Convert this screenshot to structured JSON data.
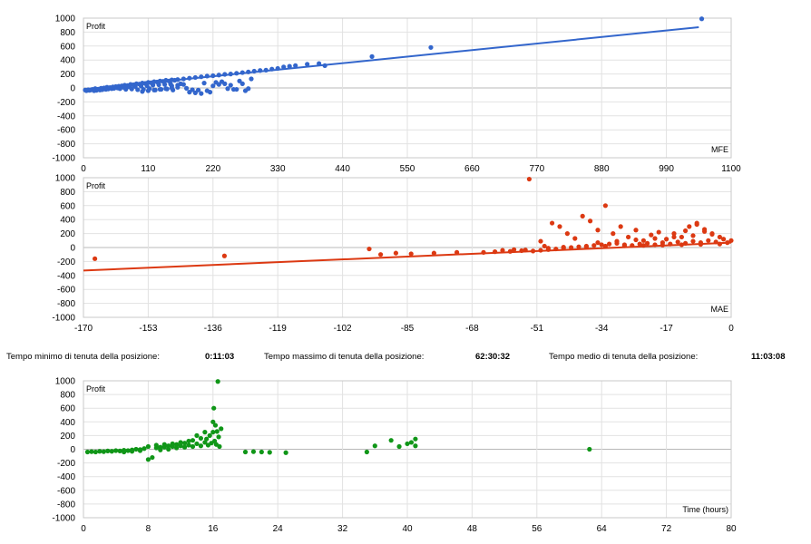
{
  "stats": {
    "min_label": "Tempo minimo di tenuta della posizione:",
    "min_value": "0:11:03",
    "max_label": "Tempo massimo di tenuta della posizione:",
    "max_value": "62:30:32",
    "avg_label": "Tempo medio di tenuta della posizione:",
    "avg_value": "11:03:08"
  },
  "chart_data": [
    {
      "type": "scatter",
      "color": "#3366cc",
      "ylabel": "Profit",
      "xlabel": "MFE",
      "xlim": [
        0,
        1100
      ],
      "ylim": [
        -1000,
        1000
      ],
      "xticks": [
        0,
        110,
        220,
        330,
        440,
        550,
        660,
        770,
        880,
        990,
        1100
      ],
      "yticks": [
        1000,
        800,
        600,
        400,
        200,
        0,
        -200,
        -400,
        -600,
        -800,
        -1000
      ],
      "trendline": [
        [
          0,
          -20
        ],
        [
          1045,
          870
        ]
      ],
      "points": [
        [
          3,
          -30
        ],
        [
          5,
          -40
        ],
        [
          8,
          -25
        ],
        [
          10,
          -35
        ],
        [
          12,
          -30
        ],
        [
          15,
          -20
        ],
        [
          18,
          -40
        ],
        [
          20,
          -10
        ],
        [
          22,
          -35
        ],
        [
          25,
          -20
        ],
        [
          28,
          -30
        ],
        [
          30,
          -5
        ],
        [
          32,
          -25
        ],
        [
          35,
          0
        ],
        [
          38,
          -20
        ],
        [
          40,
          10
        ],
        [
          42,
          -15
        ],
        [
          45,
          5
        ],
        [
          48,
          -10
        ],
        [
          50,
          15
        ],
        [
          52,
          -5
        ],
        [
          55,
          20
        ],
        [
          58,
          0
        ],
        [
          60,
          25
        ],
        [
          62,
          -10
        ],
        [
          65,
          30
        ],
        [
          68,
          10
        ],
        [
          70,
          40
        ],
        [
          72,
          -20
        ],
        [
          75,
          35
        ],
        [
          78,
          15
        ],
        [
          80,
          50
        ],
        [
          82,
          -15
        ],
        [
          85,
          45
        ],
        [
          88,
          20
        ],
        [
          90,
          60
        ],
        [
          92,
          -25
        ],
        [
          95,
          55
        ],
        [
          98,
          25
        ],
        [
          100,
          70
        ],
        [
          102,
          -20
        ],
        [
          105,
          65
        ],
        [
          108,
          30
        ],
        [
          110,
          80
        ],
        [
          112,
          -10
        ],
        [
          115,
          75
        ],
        [
          118,
          40
        ],
        [
          120,
          90
        ],
        [
          122,
          -30
        ],
        [
          125,
          85
        ],
        [
          128,
          45
        ],
        [
          130,
          100
        ],
        [
          132,
          -20
        ],
        [
          135,
          95
        ],
        [
          138,
          50
        ],
        [
          140,
          110
        ],
        [
          142,
          -15
        ],
        [
          145,
          100
        ],
        [
          148,
          55
        ],
        [
          150,
          115
        ],
        [
          152,
          -30
        ],
        [
          155,
          110
        ],
        [
          160,
          120
        ],
        [
          165,
          60
        ],
        [
          170,
          130
        ],
        [
          175,
          -5
        ],
        [
          180,
          140
        ],
        [
          185,
          -25
        ],
        [
          190,
          150
        ],
        [
          195,
          -30
        ],
        [
          200,
          160
        ],
        [
          205,
          70
        ],
        [
          210,
          170
        ],
        [
          215,
          -60
        ],
        [
          220,
          175
        ],
        [
          225,
          80
        ],
        [
          230,
          185
        ],
        [
          235,
          90
        ],
        [
          240,
          195
        ],
        [
          245,
          -10
        ],
        [
          250,
          200
        ],
        [
          255,
          -20
        ],
        [
          260,
          210
        ],
        [
          265,
          100
        ],
        [
          270,
          220
        ],
        [
          275,
          -40
        ],
        [
          280,
          230
        ],
        [
          285,
          130
        ],
        [
          290,
          240
        ],
        [
          300,
          250
        ],
        [
          310,
          255
        ],
        [
          320,
          270
        ],
        [
          330,
          280
        ],
        [
          340,
          300
        ],
        [
          350,
          310
        ],
        [
          360,
          320
        ],
        [
          380,
          340
        ],
        [
          400,
          350
        ],
        [
          410,
          320
        ],
        [
          490,
          450
        ],
        [
          590,
          580
        ],
        [
          1050,
          990
        ],
        [
          150,
          30
        ],
        [
          160,
          40
        ],
        [
          170,
          50
        ],
        [
          180,
          -60
        ],
        [
          190,
          -70
        ],
        [
          200,
          -80
        ],
        [
          210,
          -40
        ],
        [
          220,
          30
        ],
        [
          230,
          50
        ],
        [
          240,
          60
        ],
        [
          250,
          40
        ],
        [
          260,
          -20
        ],
        [
          270,
          60
        ],
        [
          280,
          -10
        ],
        [
          100,
          -50
        ],
        [
          110,
          -40
        ],
        [
          120,
          -30
        ],
        [
          130,
          -20
        ],
        [
          140,
          -10
        ],
        [
          150,
          0
        ],
        [
          160,
          10
        ]
      ]
    },
    {
      "type": "scatter",
      "color": "#dc3912",
      "ylabel": "Profit",
      "xlabel": "MAE",
      "xlim": [
        -170,
        0
      ],
      "ylim": [
        -1000,
        1000
      ],
      "xticks": [
        -170,
        -153,
        -136,
        -119,
        -102,
        -85,
        -68,
        -51,
        -34,
        -17,
        0
      ],
      "yticks": [
        1000,
        800,
        600,
        400,
        200,
        0,
        -200,
        -400,
        -600,
        -800,
        -1000
      ],
      "trendline": [
        [
          -170,
          -330
        ],
        [
          0,
          70
        ]
      ],
      "points": [
        [
          -167,
          -160
        ],
        [
          -133,
          -120
        ],
        [
          -95,
          -20
        ],
        [
          -92,
          -100
        ],
        [
          -88,
          -80
        ],
        [
          -84,
          -90
        ],
        [
          -78,
          -80
        ],
        [
          -72,
          -70
        ],
        [
          -65,
          -70
        ],
        [
          -62,
          -60
        ],
        [
          -58,
          -55
        ],
        [
          -55,
          -45
        ],
        [
          -53,
          980
        ],
        [
          -52,
          -50
        ],
        [
          -50,
          -40
        ],
        [
          -50,
          90
        ],
        [
          -49,
          20
        ],
        [
          -48,
          -30
        ],
        [
          -47,
          350
        ],
        [
          -46,
          -20
        ],
        [
          -45,
          300
        ],
        [
          -44,
          -10
        ],
        [
          -43,
          200
        ],
        [
          -42,
          0
        ],
        [
          -41,
          130
        ],
        [
          -40,
          10
        ],
        [
          -39,
          450
        ],
        [
          -38,
          20
        ],
        [
          -37,
          380
        ],
        [
          -36,
          30
        ],
        [
          -35,
          250
        ],
        [
          -34,
          40
        ],
        [
          -33,
          600
        ],
        [
          -32,
          50
        ],
        [
          -31,
          200
        ],
        [
          -30,
          60
        ],
        [
          -29,
          300
        ],
        [
          -28,
          40
        ],
        [
          -27,
          150
        ],
        [
          -26,
          30
        ],
        [
          -25,
          250
        ],
        [
          -24,
          50
        ],
        [
          -23,
          100
        ],
        [
          -22,
          60
        ],
        [
          -21,
          180
        ],
        [
          -20,
          40
        ],
        [
          -19,
          220
        ],
        [
          -18,
          70
        ],
        [
          -17,
          120
        ],
        [
          -16,
          50
        ],
        [
          -15,
          200
        ],
        [
          -14,
          80
        ],
        [
          -13,
          150
        ],
        [
          -12,
          60
        ],
        [
          -11,
          300
        ],
        [
          -10,
          90
        ],
        [
          -9,
          350
        ],
        [
          -8,
          70
        ],
        [
          -7,
          230
        ],
        [
          -6,
          100
        ],
        [
          -5,
          200
        ],
        [
          -4,
          80
        ],
        [
          -3,
          150
        ],
        [
          -2,
          120
        ],
        [
          -1,
          70
        ],
        [
          0,
          100
        ],
        [
          -60,
          -40
        ],
        [
          -57,
          -30
        ],
        [
          -54,
          -35
        ],
        [
          -48,
          -10
        ],
        [
          -44,
          5
        ],
        [
          -38,
          10
        ],
        [
          -33,
          20
        ],
        [
          -28,
          25
        ],
        [
          -23,
          30
        ],
        [
          -18,
          35
        ],
        [
          -13,
          40
        ],
        [
          -8,
          45
        ],
        [
          -3,
          50
        ],
        [
          -35,
          70
        ],
        [
          -30,
          90
        ],
        [
          -25,
          110
        ],
        [
          -20,
          130
        ],
        [
          -15,
          150
        ],
        [
          -10,
          170
        ],
        [
          -5,
          190
        ],
        [
          -7,
          260
        ],
        [
          -12,
          240
        ],
        [
          -9,
          330
        ]
      ]
    },
    {
      "type": "scatter",
      "color": "#109618",
      "ylabel": "Profit",
      "xlabel": "Time (hours)",
      "xlim": [
        0,
        80
      ],
      "ylim": [
        -1000,
        1000
      ],
      "xticks": [
        0,
        8,
        16,
        24,
        32,
        40,
        48,
        56,
        64,
        72,
        80
      ],
      "yticks": [
        1000,
        800,
        600,
        400,
        200,
        0,
        -200,
        -400,
        -600,
        -800,
        -1000
      ],
      "points": [
        [
          0.5,
          -40
        ],
        [
          1,
          -35
        ],
        [
          1.5,
          -40
        ],
        [
          2,
          -30
        ],
        [
          2.5,
          -35
        ],
        [
          3,
          -25
        ],
        [
          3.5,
          -30
        ],
        [
          4,
          -20
        ],
        [
          4.5,
          -25
        ],
        [
          5,
          -15
        ],
        [
          5.5,
          -20
        ],
        [
          6,
          -10
        ],
        [
          6.5,
          0
        ],
        [
          7,
          -5
        ],
        [
          7.5,
          10
        ],
        [
          8,
          -150
        ],
        [
          8.5,
          -120
        ],
        [
          9,
          20
        ],
        [
          9.5,
          -10
        ],
        [
          10,
          30
        ],
        [
          10.5,
          0
        ],
        [
          11,
          40
        ],
        [
          11.5,
          20
        ],
        [
          12,
          50
        ],
        [
          12.5,
          30
        ],
        [
          13,
          60
        ],
        [
          13.5,
          40
        ],
        [
          14,
          80
        ],
        [
          14.5,
          50
        ],
        [
          15,
          100
        ],
        [
          15.2,
          150
        ],
        [
          15.4,
          60
        ],
        [
          15.6,
          200
        ],
        [
          15.8,
          90
        ],
        [
          16,
          250
        ],
        [
          16.1,
          600
        ],
        [
          16.2,
          120
        ],
        [
          16.3,
          350
        ],
        [
          16.4,
          70
        ],
        [
          16.5,
          260
        ],
        [
          16.6,
          990
        ],
        [
          16.7,
          180
        ],
        [
          16.8,
          40
        ],
        [
          17,
          300
        ],
        [
          14,
          200
        ],
        [
          13,
          120
        ],
        [
          12,
          100
        ],
        [
          11,
          80
        ],
        [
          10,
          70
        ],
        [
          9,
          60
        ],
        [
          8,
          40
        ],
        [
          7,
          -20
        ],
        [
          6,
          -30
        ],
        [
          5,
          -40
        ],
        [
          15,
          250
        ],
        [
          16,
          400
        ],
        [
          14.5,
          160
        ],
        [
          13.5,
          130
        ],
        [
          12.5,
          90
        ],
        [
          11.5,
          70
        ],
        [
          10.5,
          50
        ],
        [
          9.5,
          30
        ],
        [
          20,
          -40
        ],
        [
          21,
          -35
        ],
        [
          22,
          -40
        ],
        [
          23,
          -45
        ],
        [
          25,
          -50
        ],
        [
          35,
          -40
        ],
        [
          36,
          50
        ],
        [
          38,
          130
        ],
        [
          39,
          40
        ],
        [
          40,
          80
        ],
        [
          40.5,
          100
        ],
        [
          41,
          150
        ],
        [
          41,
          50
        ],
        [
          62.5,
          0
        ]
      ]
    }
  ]
}
